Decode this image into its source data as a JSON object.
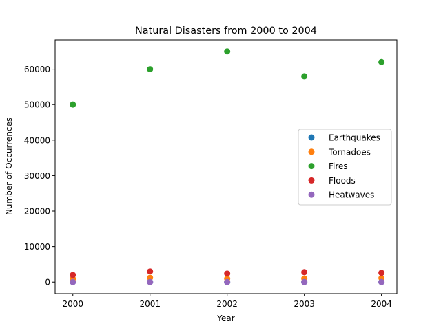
{
  "chart_data": {
    "type": "scatter",
    "title": "Natural Disasters from 2000 to 2004",
    "xlabel": "Year",
    "ylabel": "Number of Occurrences",
    "x": [
      2000,
      2001,
      2002,
      2003,
      2004
    ],
    "x_ticks": [
      "2000",
      "2001",
      "2002",
      "2003",
      "2004"
    ],
    "y_ticks": [
      "0",
      "10000",
      "20000",
      "30000",
      "40000",
      "50000",
      "60000"
    ],
    "xlim": [
      1999.77,
      2004.2
    ],
    "ylim": [
      -3250,
      68250
    ],
    "grid": false,
    "legend_position": "center-right",
    "series": [
      {
        "name": "Earthquakes",
        "color": "#1f77b4",
        "values": [
          20,
          25,
          18,
          22,
          19
        ]
      },
      {
        "name": "Tornadoes",
        "color": "#ff7f0e",
        "values": [
          900,
          1200,
          950,
          1000,
          1100
        ]
      },
      {
        "name": "Fires",
        "color": "#2ca02c",
        "values": [
          50000,
          60000,
          65000,
          58000,
          62000
        ]
      },
      {
        "name": "Floods",
        "color": "#d62728",
        "values": [
          2000,
          3000,
          2400,
          2800,
          2600
        ]
      },
      {
        "name": "Heatwaves",
        "color": "#9467bd",
        "values": [
          10,
          15,
          12,
          11,
          13
        ]
      }
    ]
  }
}
